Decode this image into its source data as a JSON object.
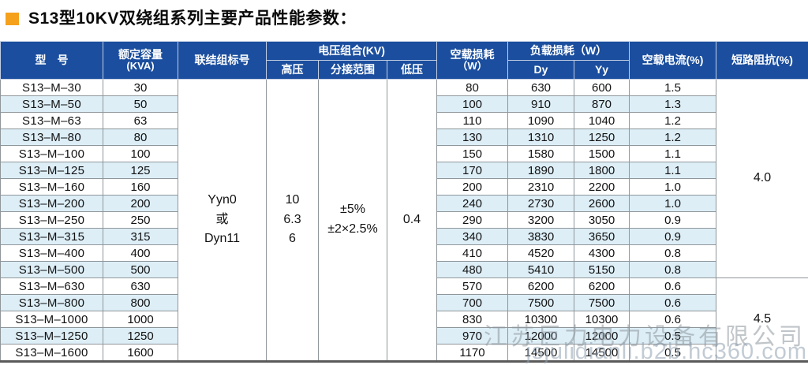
{
  "page": {
    "title": "S13型10KV双绕组系列主要产品性能参数："
  },
  "colors": {
    "header_bg": "#1b4e9e",
    "stripe": "#ddeef7",
    "accent_orange": "#f5a11c",
    "watermark_gray": "#8e979e"
  },
  "table": {
    "headers": {
      "model": "型　号",
      "capacity_l1": "额定容量",
      "capacity_l2": "(KVA)",
      "connection": "联结组标号",
      "voltage_group": "电压组合(KV)",
      "hv": "高压",
      "tap": "分接范围",
      "lv": "低压",
      "noload_l1": "空载损耗",
      "noload_l2": "（W）",
      "load_group": "负载损耗（W）",
      "dy": "Dy",
      "yy": "Yy",
      "current": "空载电流(%)",
      "impedance": "短路阻抗(%)"
    },
    "merged": {
      "connection": [
        "Yyn0",
        "或",
        "Dyn11"
      ],
      "hv": [
        "10",
        "6.3",
        "6"
      ],
      "tap": [
        "±5%",
        "±2×2.5%"
      ],
      "lv": "0.4",
      "impedance_1": "4.0",
      "impedance_1_rows": 12,
      "impedance_2": "4.5",
      "impedance_2_rows": 5
    },
    "rows": [
      {
        "model": "S13–M–30",
        "kva": "30",
        "noload": "80",
        "dy": "630",
        "yy": "600",
        "current": "1.5"
      },
      {
        "model": "S13–M–50",
        "kva": "50",
        "noload": "100",
        "dy": "910",
        "yy": "870",
        "current": "1.3"
      },
      {
        "model": "S13–M–63",
        "kva": "63",
        "noload": "110",
        "dy": "1090",
        "yy": "1040",
        "current": "1.2"
      },
      {
        "model": "S13–M–80",
        "kva": "80",
        "noload": "130",
        "dy": "1310",
        "yy": "1250",
        "current": "1.2"
      },
      {
        "model": "S13–M–100",
        "kva": "100",
        "noload": "150",
        "dy": "1580",
        "yy": "1500",
        "current": "1.1"
      },
      {
        "model": "S13–M–125",
        "kva": "125",
        "noload": "170",
        "dy": "1890",
        "yy": "1800",
        "current": "1.1"
      },
      {
        "model": "S13–M–160",
        "kva": "160",
        "noload": "200",
        "dy": "2310",
        "yy": "2200",
        "current": "1.0"
      },
      {
        "model": "S13–M–200",
        "kva": "200",
        "noload": "240",
        "dy": "2730",
        "yy": "2600",
        "current": "1.0"
      },
      {
        "model": "S13–M–250",
        "kva": "250",
        "noload": "290",
        "dy": "3200",
        "yy": "3050",
        "current": "0.9"
      },
      {
        "model": "S13–M–315",
        "kva": "315",
        "noload": "340",
        "dy": "3830",
        "yy": "3650",
        "current": "0.9"
      },
      {
        "model": "S13–M–400",
        "kva": "400",
        "noload": "410",
        "dy": "4520",
        "yy": "4300",
        "current": "0.8"
      },
      {
        "model": "S13–M–500",
        "kva": "500",
        "noload": "480",
        "dy": "5410",
        "yy": "5150",
        "current": "0.8"
      },
      {
        "model": "S13–M–630",
        "kva": "630",
        "noload": "570",
        "dy": "6200",
        "yy": "6200",
        "current": "0.6"
      },
      {
        "model": "S13–M–800",
        "kva": "800",
        "noload": "700",
        "dy": "7500",
        "yy": "7500",
        "current": "0.6"
      },
      {
        "model": "S13–M–1000",
        "kva": "1000",
        "noload": "830",
        "dy": "10300",
        "yy": "10300",
        "current": "0.6"
      },
      {
        "model": "S13–M–1250",
        "kva": "1250",
        "noload": "970",
        "dy": "12000",
        "yy": "12000",
        "current": "0.5"
      },
      {
        "model": "S13–M–1600",
        "kva": "1600",
        "noload": "1170",
        "dy": "14500",
        "yy": "14500",
        "current": "0.5"
      }
    ]
  },
  "watermark": {
    "line1": "江苏巨力电力设备有限公司",
    "line2": "jsjulidianli.b2b.hc360.com"
  }
}
